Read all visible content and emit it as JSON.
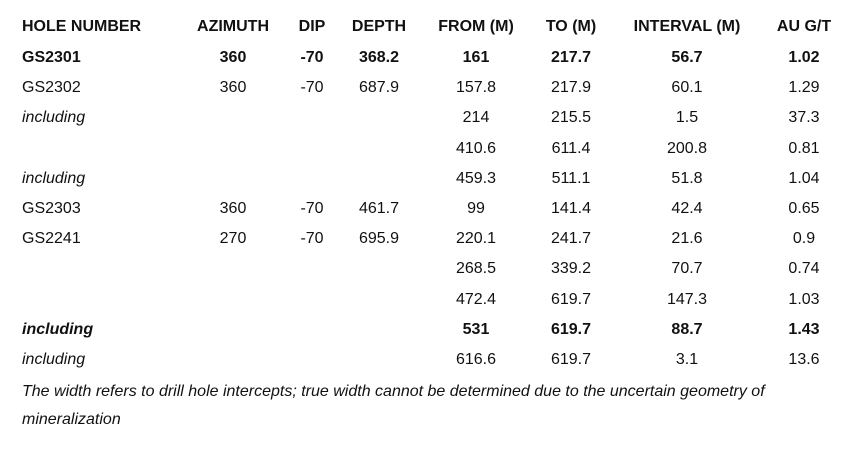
{
  "table": {
    "header": [
      "HOLE NUMBER",
      "AZIMUTH",
      "DIP",
      "DEPTH",
      "FROM (M)",
      "TO (M)",
      "INTERVAL (M)",
      "AU G/T"
    ],
    "rows": [
      {
        "cells": [
          "GS2301",
          "360",
          "-70",
          "368.2",
          "161",
          "217.7",
          "56.7",
          "1.02"
        ],
        "bold": true,
        "label_italic": false
      },
      {
        "cells": [
          "GS2302",
          "360",
          "-70",
          "687.9",
          "157.8",
          "217.9",
          "60.1",
          "1.29"
        ],
        "bold": false,
        "label_italic": false
      },
      {
        "cells": [
          "including",
          null,
          null,
          null,
          "214",
          "215.5",
          "1.5",
          "37.3"
        ],
        "bold": false,
        "label_italic": true
      },
      {
        "cells": [
          null,
          null,
          null,
          null,
          "410.6",
          "611.4",
          "200.8",
          "0.81"
        ],
        "bold": false,
        "label_italic": false
      },
      {
        "cells": [
          "including",
          null,
          null,
          null,
          "459.3",
          "511.1",
          "51.8",
          "1.04"
        ],
        "bold": false,
        "label_italic": true
      },
      {
        "cells": [
          "GS2303",
          "360",
          "-70",
          "461.7",
          "99",
          "141.4",
          "42.4",
          "0.65"
        ],
        "bold": false,
        "label_italic": false
      },
      {
        "cells": [
          "GS2241",
          "270",
          "-70",
          "695.9",
          "220.1",
          "241.7",
          "21.6",
          "0.9"
        ],
        "bold": false,
        "label_italic": false
      },
      {
        "cells": [
          null,
          null,
          null,
          null,
          "268.5",
          "339.2",
          "70.7",
          "0.74"
        ],
        "bold": false,
        "label_italic": false
      },
      {
        "cells": [
          null,
          null,
          null,
          null,
          "472.4",
          "619.7",
          "147.3",
          "1.03"
        ],
        "bold": false,
        "label_italic": false
      },
      {
        "cells": [
          "including",
          null,
          null,
          null,
          "531",
          "619.7",
          "88.7",
          "1.43"
        ],
        "bold": true,
        "label_italic": true
      },
      {
        "cells": [
          "including",
          null,
          null,
          null,
          "616.6",
          "619.7",
          "3.1",
          "13.6"
        ],
        "bold": false,
        "label_italic": true
      }
    ],
    "footnote": "The width refers to drill hole intercepts; true width cannot be determined due to the uncertain geometry of mineralization"
  }
}
